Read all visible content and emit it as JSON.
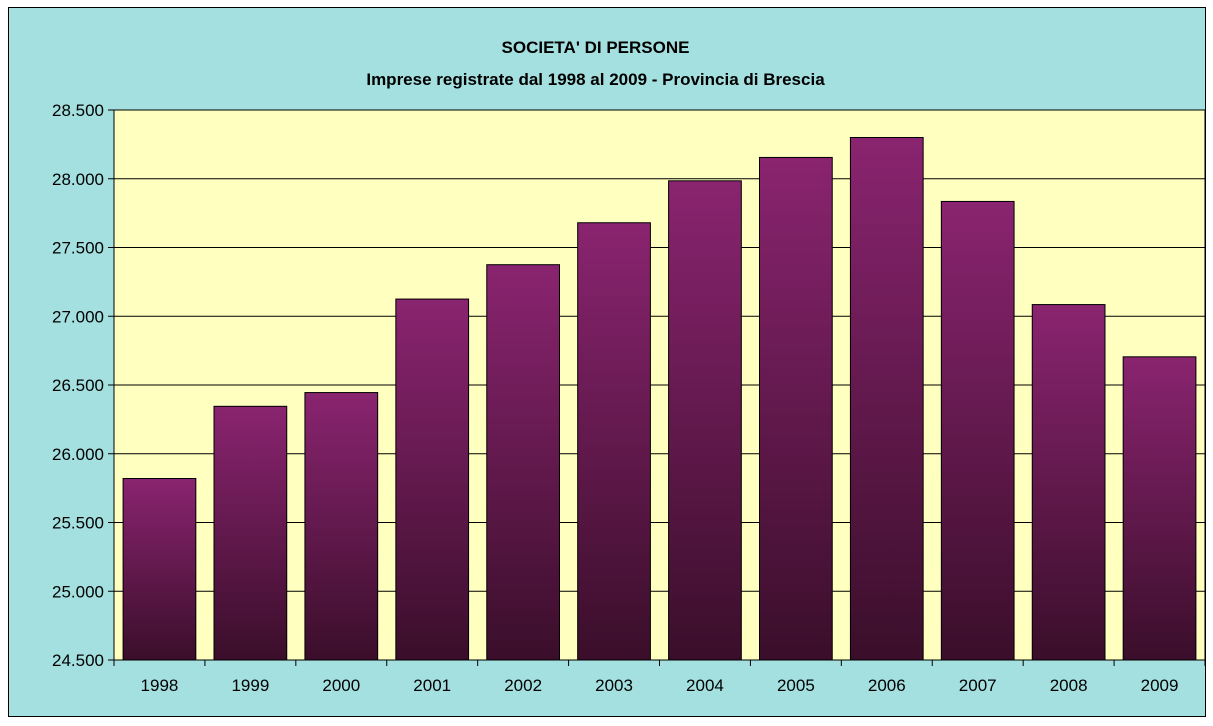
{
  "chart_data": {
    "type": "bar",
    "title": "SOCIETA' DI PERSONE",
    "subtitle": "Imprese registrate dal 1998 al 2009 - Provincia di Brescia",
    "xlabel": "",
    "ylabel": "",
    "categories": [
      "1998",
      "1999",
      "2000",
      "2001",
      "2002",
      "2003",
      "2004",
      "2005",
      "2006",
      "2007",
      "2008",
      "2009"
    ],
    "values": [
      25820,
      26345,
      26445,
      27125,
      27375,
      27680,
      27985,
      28155,
      28300,
      27835,
      27085,
      26705
    ],
    "ylim": [
      24500,
      28500
    ],
    "yticks": [
      24500,
      25000,
      25500,
      26000,
      26500,
      27000,
      27500,
      28000,
      28500
    ],
    "ytick_labels": [
      "24.500",
      "25.000",
      "25.500",
      "26.000",
      "26.500",
      "27.000",
      "27.500",
      "28.000",
      "28.500"
    ],
    "grid": true,
    "legend": "none",
    "colors": {
      "background": "#a4e0e0",
      "plot_area": "#ffffc0",
      "bar_top": "#8a2470",
      "bar_bottom": "#3a0e2a",
      "gridline": "#000000"
    }
  }
}
